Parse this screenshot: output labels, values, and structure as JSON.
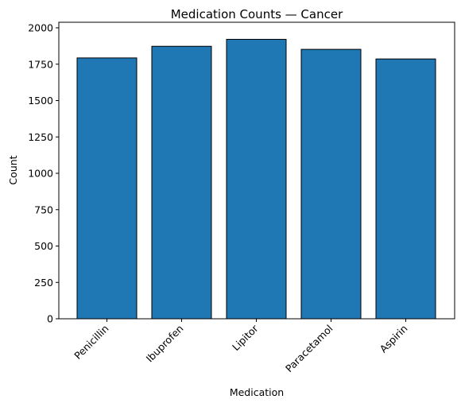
{
  "chart_data": {
    "type": "bar",
    "title": "Medication Counts — Cancer",
    "xlabel": "Medication",
    "ylabel": "Count",
    "categories": [
      "Penicillin",
      "Ibuprofen",
      "Lipitor",
      "Paracetamol",
      "Aspirin"
    ],
    "values": [
      1793,
      1873,
      1921,
      1852,
      1786
    ],
    "ylim": [
      0,
      2000
    ],
    "yticks": [
      0,
      250,
      500,
      750,
      1000,
      1250,
      1500,
      1750,
      2000
    ],
    "ytick_labels": [
      "0",
      "250",
      "500",
      "750",
      "1000",
      "1250",
      "1500",
      "1750",
      "2000"
    ],
    "bar_color": "#1f77b4",
    "edge_color": "#000000",
    "grid": false,
    "legend": "none"
  }
}
